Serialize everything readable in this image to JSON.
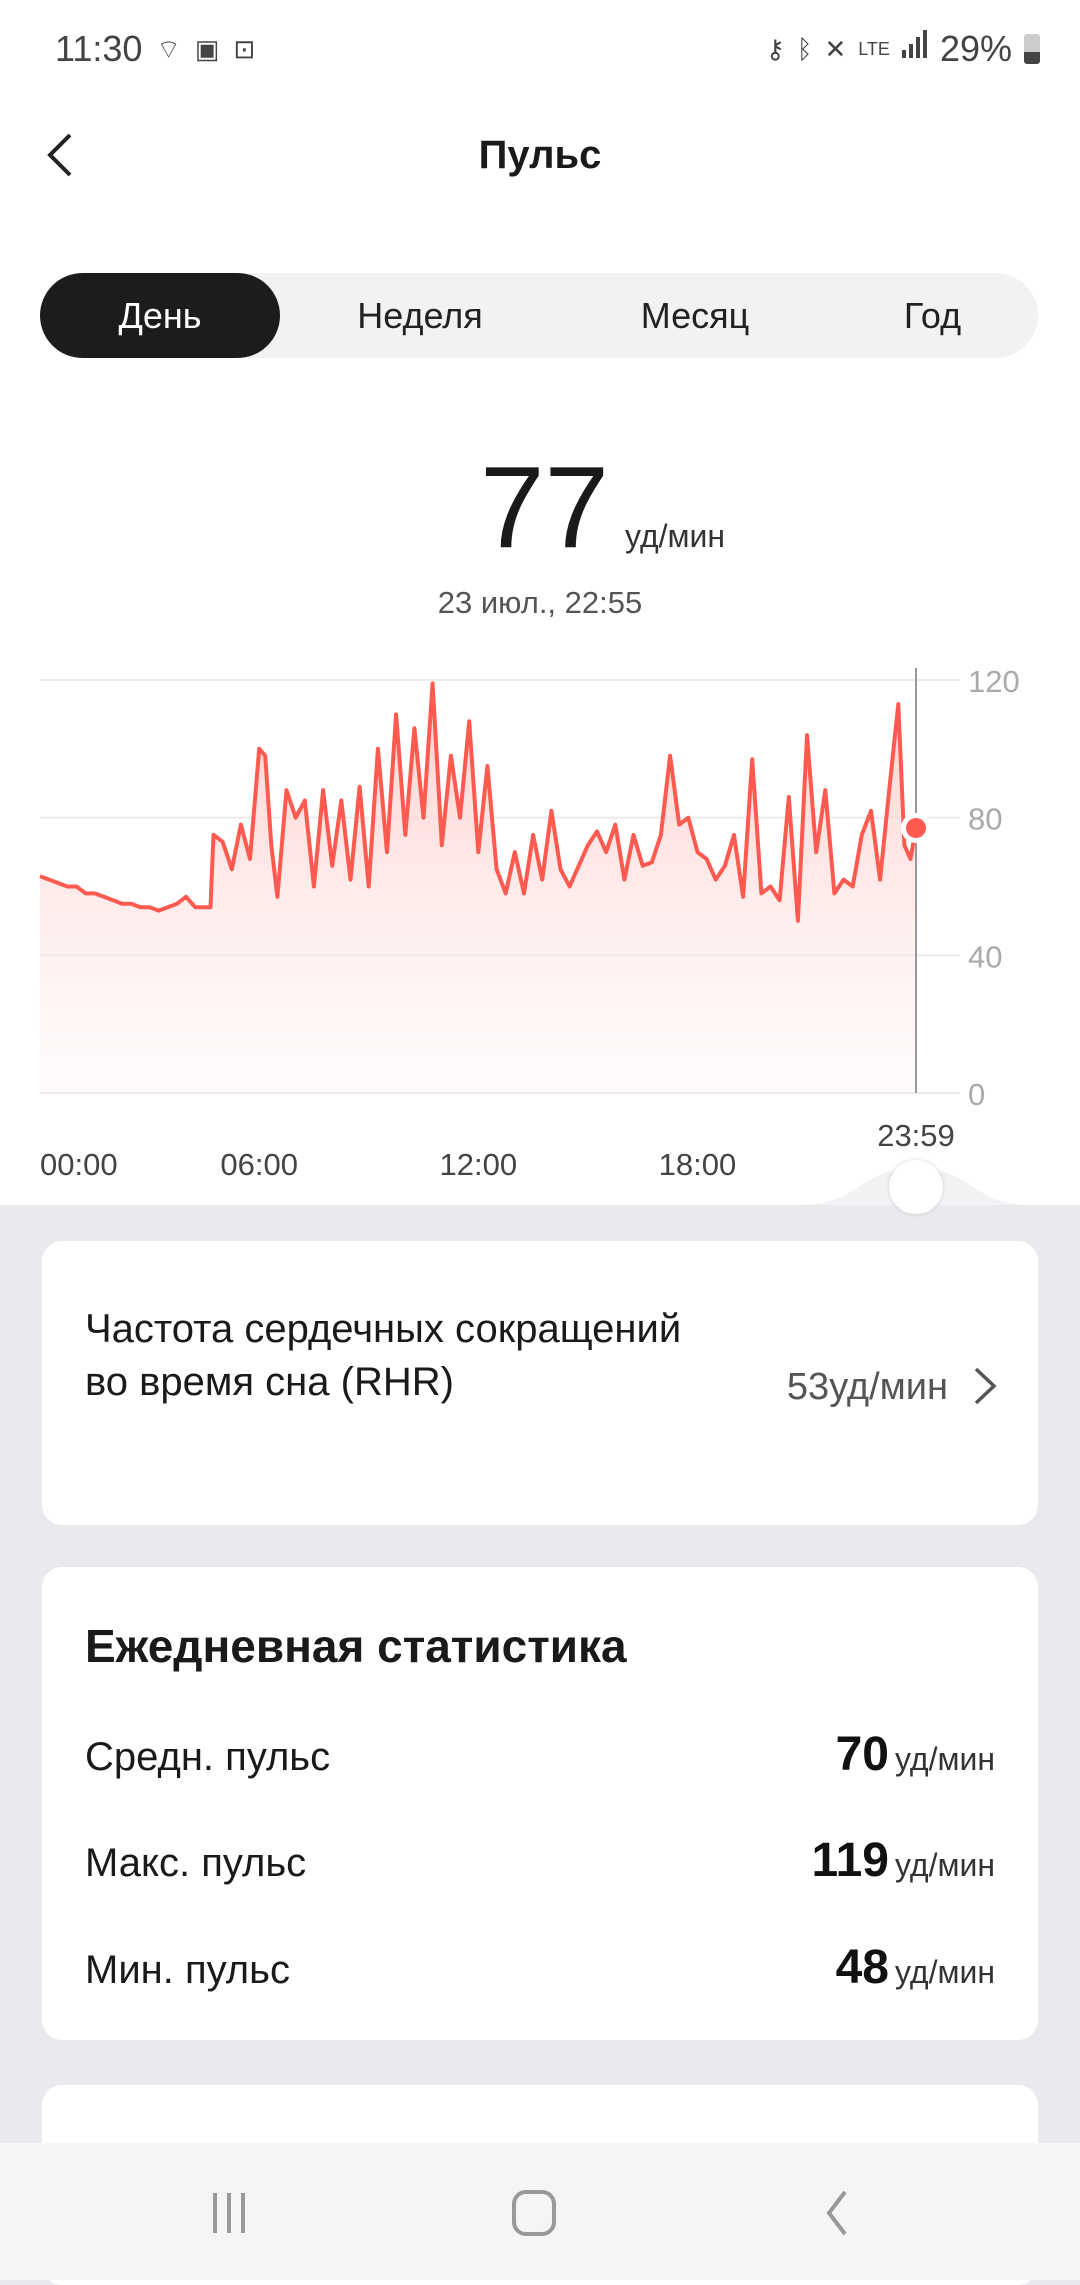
{
  "status_bar": {
    "time": "11:30",
    "battery": "29%",
    "network": "LTE",
    "icons": [
      "hotspot-lock-icon",
      "gallery-icon",
      "lock-icon",
      "vpn-key-icon",
      "bluetooth-icon",
      "mute-icon",
      "lte-icon",
      "signal-icon",
      "battery-icon"
    ]
  },
  "header": {
    "title": "Пульс",
    "back_icon": "chevron-left-icon"
  },
  "tabs": [
    {
      "label": "День",
      "active": true
    },
    {
      "label": "Неделя"
    },
    {
      "label": "Месяц"
    },
    {
      "label": "Год"
    }
  ],
  "current": {
    "value": "77",
    "unit": "уд/мин",
    "datetime": "23 июл., 22:55"
  },
  "colors": {
    "line": "#ff5a50",
    "accent": "#1c1c1c",
    "background": "#e9eaee"
  },
  "chart_data": {
    "type": "area",
    "y_ticks": [
      "120",
      "80",
      "40",
      "0"
    ],
    "ylim": [
      0,
      120
    ],
    "x_ticks": [
      "00:00",
      "06:00",
      "12:00",
      "18:00"
    ],
    "cursor_label": "23:59",
    "grid": true,
    "series": [
      {
        "values": [
          [
            "00:00",
            63
          ],
          [
            "00:15",
            62
          ],
          [
            "00:30",
            61
          ],
          [
            "00:45",
            60
          ],
          [
            "01:00",
            60
          ],
          [
            "01:15",
            58
          ],
          [
            "01:30",
            58
          ],
          [
            "01:45",
            57
          ],
          [
            "02:00",
            56
          ],
          [
            "02:15",
            55
          ],
          [
            "02:30",
            55
          ],
          [
            "02:45",
            54
          ],
          [
            "03:00",
            54
          ],
          [
            "03:15",
            53
          ],
          [
            "03:30",
            54
          ],
          [
            "03:45",
            55
          ],
          [
            "04:00",
            57
          ],
          [
            "04:15",
            54
          ],
          [
            "04:30",
            54
          ],
          [
            "04:40",
            54
          ],
          [
            "04:45",
            75
          ],
          [
            "05:00",
            73
          ],
          [
            "05:15",
            65
          ],
          [
            "05:30",
            78
          ],
          [
            "05:45",
            68
          ],
          [
            "06:00",
            100
          ],
          [
            "06:10",
            98
          ],
          [
            "06:20",
            72
          ],
          [
            "06:30",
            57
          ],
          [
            "06:45",
            88
          ],
          [
            "07:00",
            80
          ],
          [
            "07:15",
            85
          ],
          [
            "07:30",
            60
          ],
          [
            "07:45",
            88
          ],
          [
            "08:00",
            66
          ],
          [
            "08:15",
            85
          ],
          [
            "08:30",
            62
          ],
          [
            "08:45",
            89
          ],
          [
            "09:00",
            60
          ],
          [
            "09:15",
            100
          ],
          [
            "09:30",
            70
          ],
          [
            "09:45",
            110
          ],
          [
            "10:00",
            75
          ],
          [
            "10:15",
            106
          ],
          [
            "10:30",
            80
          ],
          [
            "10:45",
            119
          ],
          [
            "11:00",
            72
          ],
          [
            "11:15",
            98
          ],
          [
            "11:30",
            80
          ],
          [
            "11:45",
            108
          ],
          [
            "12:00",
            70
          ],
          [
            "12:15",
            95
          ],
          [
            "12:30",
            65
          ],
          [
            "12:45",
            58
          ],
          [
            "13:00",
            70
          ],
          [
            "13:15",
            58
          ],
          [
            "13:30",
            75
          ],
          [
            "13:45",
            62
          ],
          [
            "14:00",
            82
          ],
          [
            "14:15",
            65
          ],
          [
            "14:30",
            60
          ],
          [
            "14:45",
            66
          ],
          [
            "15:00",
            72
          ],
          [
            "15:15",
            76
          ],
          [
            "15:30",
            70
          ],
          [
            "15:45",
            78
          ],
          [
            "16:00",
            62
          ],
          [
            "16:15",
            75
          ],
          [
            "16:30",
            66
          ],
          [
            "16:45",
            67
          ],
          [
            "17:00",
            75
          ],
          [
            "17:15",
            98
          ],
          [
            "17:30",
            78
          ],
          [
            "17:45",
            80
          ],
          [
            "18:00",
            70
          ],
          [
            "18:15",
            68
          ],
          [
            "18:30",
            62
          ],
          [
            "18:45",
            66
          ],
          [
            "19:00",
            75
          ],
          [
            "19:15",
            57
          ],
          [
            "19:30",
            97
          ],
          [
            "19:45",
            58
          ],
          [
            "20:00",
            60
          ],
          [
            "20:15",
            56
          ],
          [
            "20:30",
            86
          ],
          [
            "20:45",
            50
          ],
          [
            "21:00",
            104
          ],
          [
            "21:15",
            70
          ],
          [
            "21:30",
            88
          ],
          [
            "21:45",
            58
          ],
          [
            "22:00",
            62
          ],
          [
            "22:15",
            60
          ],
          [
            "22:30",
            75
          ],
          [
            "22:45",
            82
          ],
          [
            "23:00",
            62
          ],
          [
            "23:15",
            88
          ],
          [
            "23:30",
            113
          ],
          [
            "23:40",
            72
          ],
          [
            "23:50",
            68
          ],
          [
            "23:59",
            77
          ]
        ]
      }
    ]
  },
  "rhr": {
    "label": "Частота сердечных сокращений во время сна (RHR)",
    "value": "53уд/мин"
  },
  "daily": {
    "title": "Ежедневная статистика",
    "unit": "уд/мин",
    "rows": [
      {
        "label": "Средн. пульс",
        "value": "70"
      },
      {
        "label": "Макс. пульс",
        "value": "119"
      },
      {
        "label": "Мин. пульс",
        "value": "48"
      }
    ]
  }
}
